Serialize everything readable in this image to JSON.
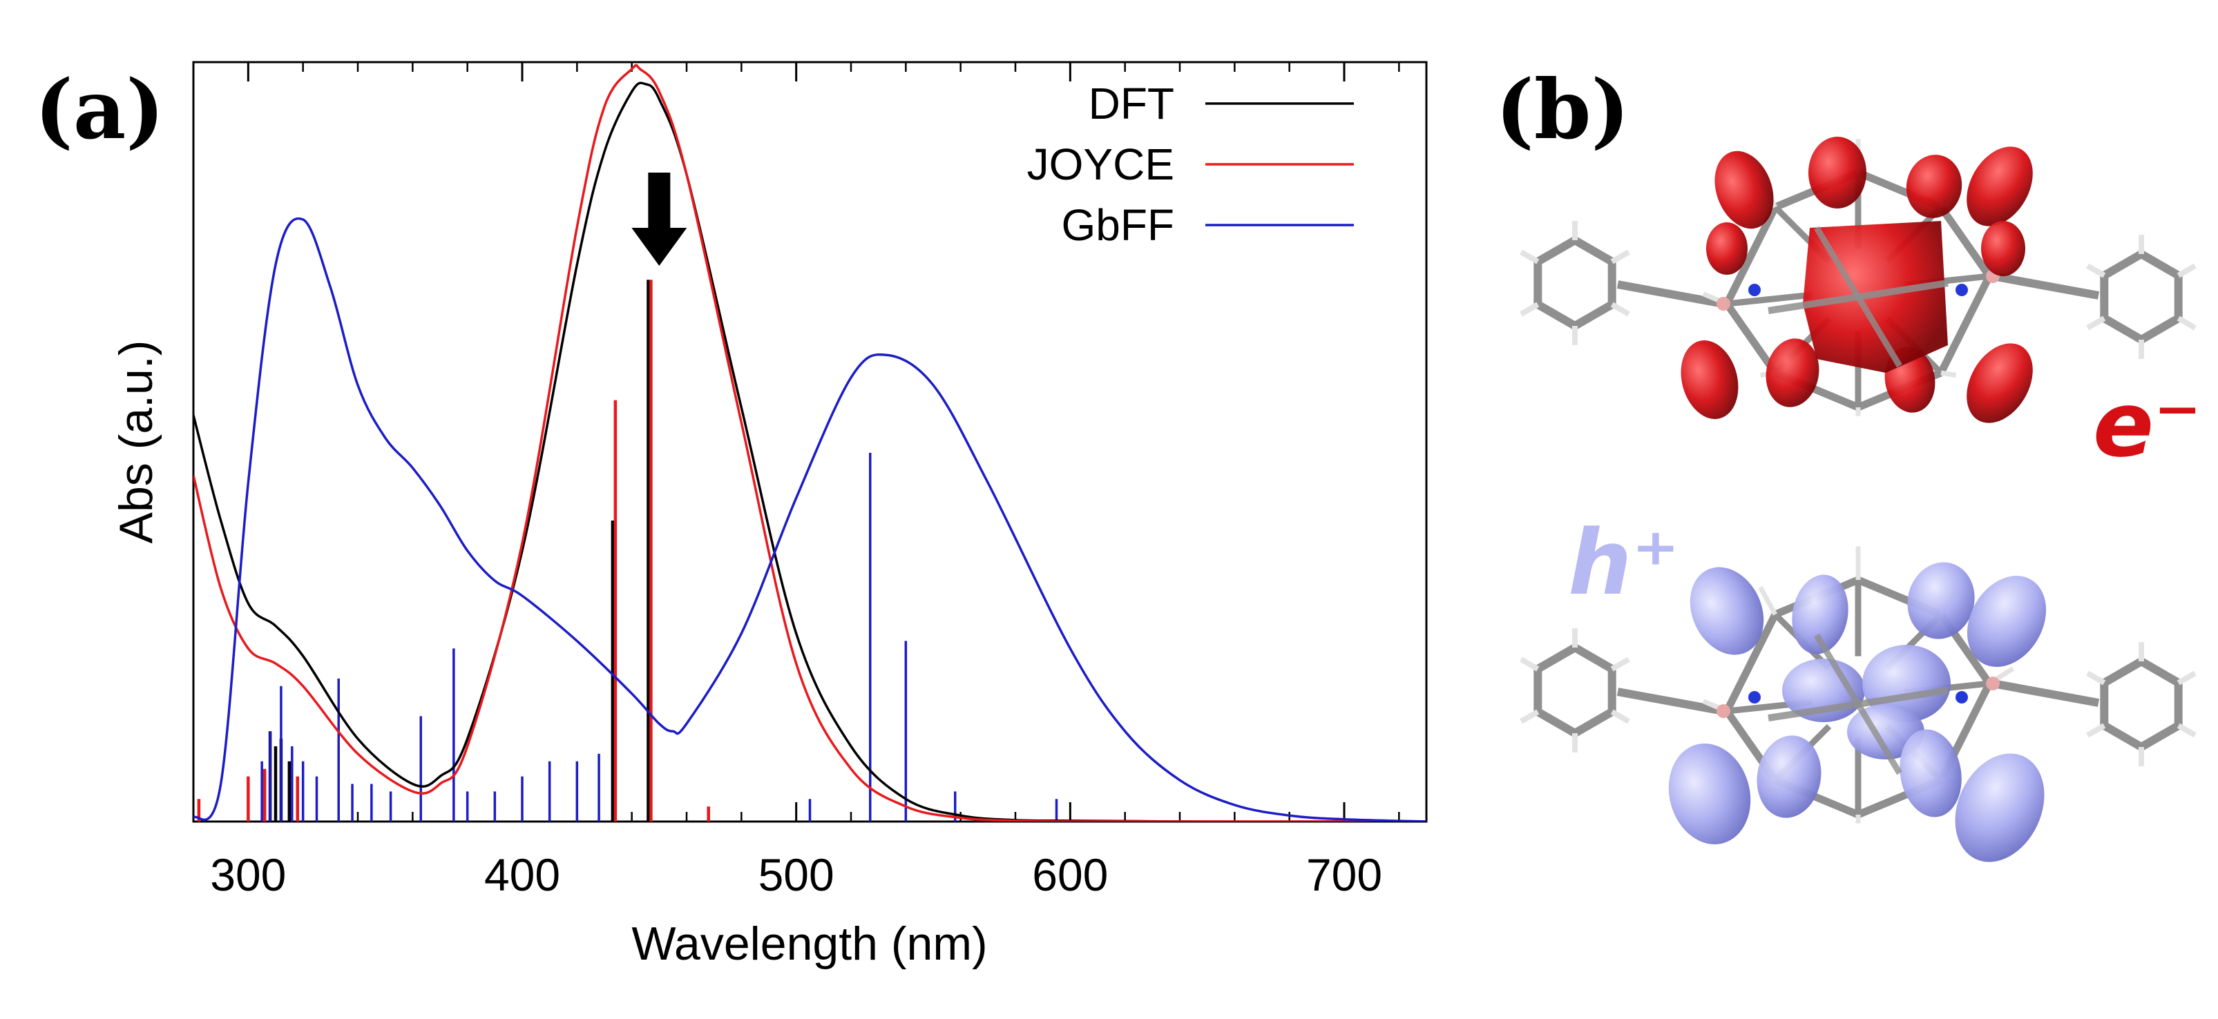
{
  "panels": {
    "a_label": "(a)",
    "b_label": "(b)"
  },
  "chart_data": {
    "type": "line",
    "title": "",
    "xlabel": "Wavelength (nm)",
    "ylabel": "Abs (a.u.)",
    "xlim": [
      280,
      730
    ],
    "ylim": [
      0,
      1.0
    ],
    "xticks": [
      300,
      400,
      500,
      600,
      700
    ],
    "legend_position": "top-right",
    "colors": {
      "DFT": "#000000",
      "JOYCE": "#e8191c",
      "GbFF": "#1c1cc8"
    },
    "series": [
      {
        "name": "DFT",
        "x": [
          280,
          290,
          300,
          310,
          320,
          340,
          360,
          370,
          380,
          400,
          420,
          430,
          440,
          445,
          450,
          460,
          480,
          500,
          520,
          540,
          560,
          580,
          600,
          650,
          700,
          730
        ],
        "y": [
          0.54,
          0.4,
          0.29,
          0.26,
          0.22,
          0.11,
          0.05,
          0.06,
          0.11,
          0.36,
          0.74,
          0.89,
          0.97,
          0.98,
          0.96,
          0.86,
          0.55,
          0.25,
          0.1,
          0.03,
          0.008,
          0.002,
          0.001,
          0.0,
          0.0,
          0.0
        ]
      },
      {
        "name": "JOYCE",
        "x": [
          280,
          290,
          300,
          310,
          320,
          340,
          360,
          370,
          380,
          400,
          420,
          430,
          440,
          443,
          450,
          460,
          480,
          500,
          520,
          540,
          560,
          580,
          600,
          650,
          700,
          730
        ],
        "y": [
          0.46,
          0.31,
          0.23,
          0.21,
          0.18,
          0.09,
          0.04,
          0.05,
          0.1,
          0.37,
          0.79,
          0.95,
          1.0,
          1.0,
          0.97,
          0.86,
          0.53,
          0.21,
          0.07,
          0.02,
          0.005,
          0.001,
          0.0,
          0.0,
          0.0,
          0.0
        ]
      },
      {
        "name": "GbFF",
        "x": [
          280,
          290,
          300,
          310,
          320,
          330,
          340,
          350,
          360,
          370,
          380,
          390,
          400,
          420,
          440,
          450,
          455,
          460,
          480,
          500,
          520,
          533,
          550,
          570,
          600,
          620,
          640,
          660,
          680,
          700,
          730
        ],
        "y": [
          0.005,
          0.05,
          0.45,
          0.74,
          0.8,
          0.71,
          0.58,
          0.51,
          0.47,
          0.42,
          0.36,
          0.32,
          0.3,
          0.24,
          0.17,
          0.13,
          0.12,
          0.13,
          0.25,
          0.43,
          0.59,
          0.62,
          0.58,
          0.45,
          0.23,
          0.12,
          0.055,
          0.022,
          0.008,
          0.003,
          0.0
        ]
      }
    ],
    "sticks": [
      {
        "series": "DFT",
        "x": [
          433,
          446,
          308,
          310,
          312,
          315
        ],
        "y": [
          0.4,
          0.72,
          0.12,
          0.1,
          0.11,
          0.08
        ]
      },
      {
        "series": "JOYCE",
        "x": [
          282,
          300,
          306,
          318,
          434,
          447,
          468
        ],
        "y": [
          0.03,
          0.06,
          0.07,
          0.06,
          0.56,
          0.72,
          0.02
        ]
      },
      {
        "series": "GbFF",
        "x": [
          305,
          308,
          312,
          316,
          320,
          325,
          333,
          338,
          345,
          352,
          363,
          375,
          380,
          390,
          400,
          410,
          420,
          428,
          505,
          527,
          540,
          558,
          595
        ],
        "y": [
          0.08,
          0.12,
          0.18,
          0.1,
          0.08,
          0.06,
          0.19,
          0.05,
          0.05,
          0.04,
          0.14,
          0.23,
          0.04,
          0.04,
          0.06,
          0.08,
          0.08,
          0.09,
          0.03,
          0.49,
          0.24,
          0.04,
          0.03
        ]
      }
    ],
    "annotation": {
      "type": "arrow",
      "x": 450,
      "direction": "down"
    }
  },
  "carrier_labels": {
    "electron": "e⁻",
    "hole": "h⁺"
  },
  "molecule_colors": {
    "electron_density": "#d60f14",
    "hole_density": "#a9acf0",
    "carbon": "#8f8f8f",
    "hydrogen": "#e3e3e3",
    "nitrogen": "#2438d8",
    "boron": "#e8a6a6"
  }
}
